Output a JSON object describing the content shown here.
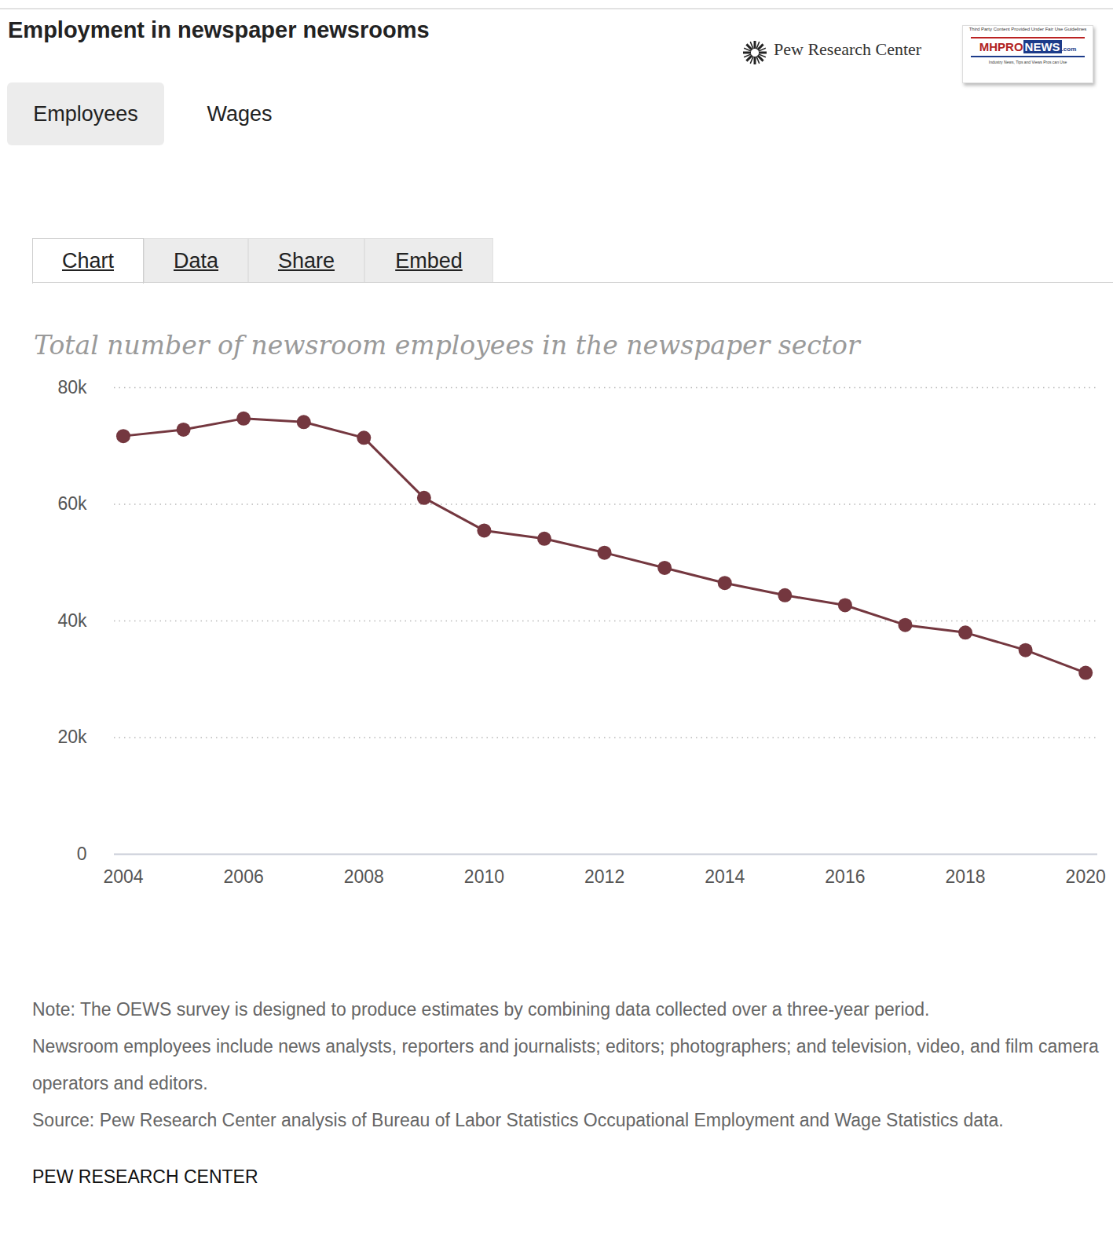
{
  "page": {
    "title": "Employment in newspaper newsrooms",
    "tabs": [
      "Employees",
      "Wages"
    ],
    "view_tabs": [
      "Chart",
      "Data",
      "Share",
      "Embed"
    ],
    "brand": "Pew Research Center",
    "watermark": {
      "caption": "Third Party Content Provided Under Fair Use Guidelines",
      "name_parts": [
        "MHPRO",
        "NEWS",
        ".com"
      ],
      "tagline": "Industry News, Tips and Views Pros can Use"
    },
    "notes": [
      "Note: The OEWS survey is designed to produce estimates by combining data collected over a three-year period.",
      "Newsroom employees include news analysts, reporters and journalists; editors; photographers; and television, video, and film camera operators and editors.",
      "Source: Pew Research Center analysis of Bureau of Labor Statistics Occupational Employment and Wage Statistics data."
    ],
    "footer": "PEW RESEARCH CENTER"
  },
  "chart_data": {
    "type": "line",
    "title": "Total number of newsroom employees in the newspaper sector",
    "x": [
      2004,
      2005,
      2006,
      2007,
      2008,
      2009,
      2010,
      2011,
      2012,
      2013,
      2014,
      2015,
      2016,
      2017,
      2018,
      2019,
      2020
    ],
    "values": [
      71700,
      72800,
      74700,
      74100,
      71400,
      61100,
      55500,
      54100,
      51700,
      49100,
      46500,
      44400,
      42700,
      39300,
      38000,
      35000,
      31100
    ],
    "color": "#74373f",
    "marker": "circle",
    "xlim": [
      2003.85,
      2020.2
    ],
    "xticks": [
      2004,
      2006,
      2008,
      2010,
      2012,
      2014,
      2016,
      2018,
      2020
    ],
    "ylim": [
      0,
      80000
    ],
    "yticks": [
      0,
      {
        "value": 20000,
        "label": "20k"
      },
      {
        "value": 40000,
        "label": "40k"
      },
      {
        "value": 60000,
        "label": "60k"
      },
      {
        "value": 80000,
        "label": "80k"
      }
    ],
    "grid": true
  }
}
